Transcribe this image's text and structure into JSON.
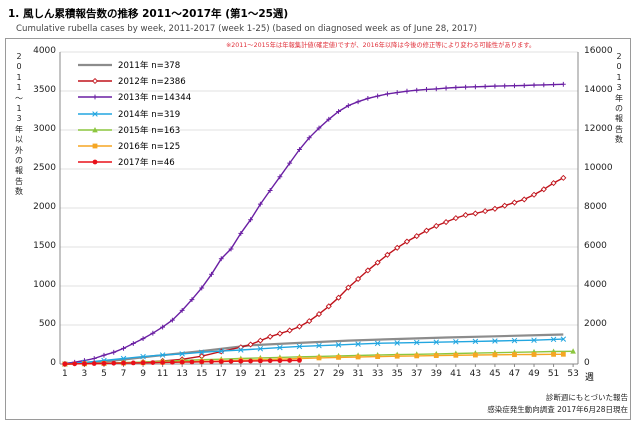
{
  "chart_data": {
    "type": "line",
    "title": "1. 風しん累積報告数の推移  2011～2017年 (第1～25週)",
    "subtitle": "Cumulative rubella cases by week, 2011-2017 (week 1-25)  (based on diagnosed week as of June 28, 2017)",
    "note": "※2011～2015年は年報集計値(確定値)ですが、2016年以降は今後の修正等により変わる可能性があります。",
    "ylabel_left": "2011～13年以外の報告数",
    "ylabel_right": "2013年の報告数",
    "xlabel_unit": "週",
    "footnote_1": "診断週にもとづいた報告",
    "footnote_2": "感染症発生動向調査 2017年6月28日現在",
    "left_axis": {
      "ylim": [
        0,
        4000
      ],
      "ticks": [
        "0",
        "500",
        "1000",
        "1500",
        "2000",
        "2500",
        "3000",
        "3500",
        "4000"
      ]
    },
    "right_axis": {
      "ylim": [
        0,
        16000
      ],
      "ticks": [
        "0",
        "2000",
        "4000",
        "6000",
        "8000",
        "10000",
        "12000",
        "14000",
        "16000"
      ]
    },
    "x_ticks": [
      "1",
      "3",
      "5",
      "7",
      "9",
      "11",
      "13",
      "15",
      "17",
      "19",
      "21",
      "23",
      "25",
      "27",
      "29",
      "31",
      "33",
      "35",
      "37",
      "39",
      "41",
      "43",
      "45",
      "47",
      "49",
      "51",
      "53"
    ],
    "series": [
      {
        "name": "2011年 n=378",
        "color": "#8c8c8c",
        "marker": "none",
        "axis": "left",
        "x": [
          1,
          5,
          10,
          15,
          20,
          25,
          30,
          35,
          40,
          45,
          50,
          52
        ],
        "values": [
          0,
          30,
          100,
          165,
          240,
          270,
          300,
          320,
          340,
          355,
          372,
          378
        ]
      },
      {
        "name": "2012年 n=2386",
        "color": "#c0141c",
        "marker": "diamond",
        "axis": "left",
        "x": [
          1,
          3,
          5,
          7,
          9,
          11,
          13,
          15,
          17,
          19,
          20,
          21,
          22,
          23,
          24,
          25,
          26,
          27,
          28,
          29,
          30,
          31,
          32,
          33,
          34,
          35,
          36,
          37,
          38,
          39,
          40,
          41,
          42,
          43,
          44,
          45,
          46,
          47,
          48,
          49,
          50,
          51,
          52
        ],
        "values": [
          0,
          4,
          8,
          15,
          25,
          40,
          60,
          100,
          160,
          215,
          250,
          300,
          350,
          390,
          430,
          480,
          550,
          640,
          740,
          850,
          980,
          1090,
          1200,
          1300,
          1400,
          1490,
          1570,
          1640,
          1710,
          1770,
          1820,
          1870,
          1910,
          1930,
          1960,
          1990,
          2030,
          2070,
          2110,
          2170,
          2240,
          2320,
          2386
        ]
      },
      {
        "name": "2013年 n=14344",
        "color": "#6a1fa3",
        "marker": "plus",
        "axis": "right",
        "x": [
          1,
          2,
          3,
          4,
          5,
          6,
          7,
          8,
          9,
          10,
          11,
          12,
          13,
          14,
          15,
          16,
          17,
          18,
          19,
          20,
          21,
          22,
          23,
          24,
          25,
          26,
          27,
          28,
          29,
          30,
          31,
          32,
          33,
          34,
          35,
          36,
          37,
          38,
          39,
          40,
          41,
          42,
          43,
          44,
          45,
          46,
          47,
          48,
          49,
          50,
          51,
          52
        ],
        "values": [
          30,
          90,
          180,
          280,
          450,
          600,
          800,
          1050,
          1300,
          1580,
          1890,
          2250,
          2750,
          3300,
          3900,
          4600,
          5400,
          5900,
          6700,
          7400,
          8200,
          8900,
          9600,
          10300,
          11000,
          11600,
          12100,
          12550,
          12950,
          13250,
          13450,
          13620,
          13740,
          13850,
          13920,
          13990,
          14040,
          14080,
          14110,
          14150,
          14180,
          14200,
          14215,
          14230,
          14250,
          14260,
          14270,
          14280,
          14300,
          14315,
          14330,
          14344
        ]
      },
      {
        "name": "2014年 n=319",
        "color": "#22a6e0",
        "marker": "x",
        "axis": "left",
        "x": [
          1,
          3,
          5,
          7,
          9,
          11,
          13,
          15,
          17,
          19,
          21,
          23,
          25,
          27,
          29,
          31,
          33,
          35,
          37,
          39,
          41,
          43,
          45,
          47,
          49,
          51,
          52
        ],
        "values": [
          0,
          20,
          45,
          70,
          95,
          115,
          130,
          150,
          165,
          180,
          195,
          210,
          225,
          235,
          245,
          255,
          265,
          270,
          275,
          280,
          285,
          290,
          295,
          300,
          305,
          315,
          319
        ]
      },
      {
        "name": "2015年 n=163",
        "color": "#8cc63f",
        "marker": "triangle",
        "axis": "left",
        "x": [
          1,
          3,
          5,
          7,
          9,
          11,
          13,
          15,
          17,
          19,
          21,
          23,
          25,
          27,
          29,
          31,
          33,
          35,
          37,
          39,
          41,
          43,
          45,
          47,
          49,
          51,
          53
        ],
        "values": [
          0,
          4,
          10,
          18,
          25,
          35,
          45,
          55,
          62,
          70,
          78,
          85,
          92,
          98,
          104,
          110,
          115,
          120,
          125,
          130,
          135,
          140,
          145,
          150,
          155,
          160,
          163
        ]
      },
      {
        "name": "2016年 n=125",
        "color": "#f5a623",
        "marker": "square",
        "axis": "left",
        "x": [
          1,
          3,
          5,
          7,
          9,
          11,
          13,
          15,
          17,
          19,
          21,
          23,
          25,
          27,
          29,
          31,
          33,
          35,
          37,
          39,
          41,
          43,
          45,
          47,
          49,
          51,
          52
        ],
        "values": [
          0,
          4,
          8,
          12,
          16,
          22,
          28,
          34,
          40,
          48,
          55,
          62,
          70,
          78,
          85,
          90,
          95,
          100,
          104,
          108,
          112,
          115,
          118,
          120,
          122,
          124,
          125
        ]
      },
      {
        "name": "2017年 n=46",
        "color": "#e8101a",
        "marker": "circle",
        "axis": "left",
        "x": [
          1,
          2,
          3,
          4,
          5,
          6,
          7,
          8,
          9,
          10,
          11,
          12,
          13,
          14,
          15,
          16,
          17,
          18,
          19,
          20,
          21,
          22,
          23,
          24,
          25
        ],
        "values": [
          0,
          2,
          4,
          6,
          8,
          10,
          12,
          14,
          16,
          18,
          20,
          22,
          24,
          26,
          28,
          30,
          32,
          34,
          36,
          38,
          40,
          42,
          43,
          45,
          46
        ]
      }
    ]
  }
}
